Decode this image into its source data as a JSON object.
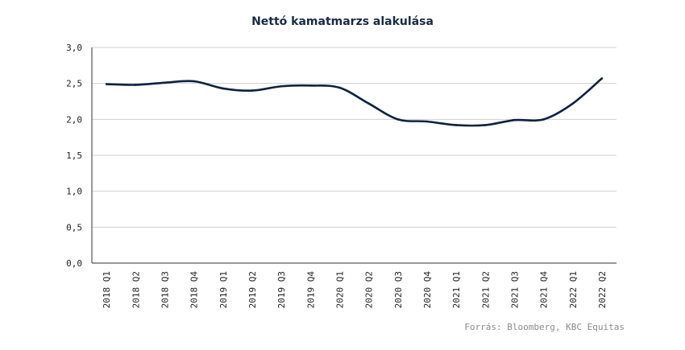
{
  "chart_data": {
    "type": "line",
    "title": "Nettó kamatmarzs alakulása",
    "xlabel": "",
    "ylabel": "",
    "categories": [
      "2018 Q1",
      "2018 Q2",
      "2018 Q3",
      "2018 Q4",
      "2019 Q1",
      "2019 Q2",
      "2019 Q3",
      "2019 Q4",
      "2020 Q1",
      "2020 Q2",
      "2020 Q3",
      "2020 Q4",
      "2021 Q1",
      "2021 Q2",
      "2021 Q3",
      "2021 Q4",
      "2022 Q1",
      "2022 Q2"
    ],
    "series": [
      {
        "values": [
          2.49,
          2.48,
          2.51,
          2.53,
          2.43,
          2.4,
          2.46,
          2.47,
          2.44,
          2.22,
          2.0,
          1.97,
          1.92,
          1.92,
          1.99,
          2.0,
          2.22,
          2.57
        ]
      }
    ],
    "yticks": [
      "0,0",
      "0,5",
      "1,0",
      "1,5",
      "2,0",
      "2,5",
      "3,0"
    ],
    "ylim": [
      0,
      3
    ],
    "grid": true,
    "line_color": "#0e2240",
    "source": "Forrás: Bloomberg, KBC Equitas"
  }
}
